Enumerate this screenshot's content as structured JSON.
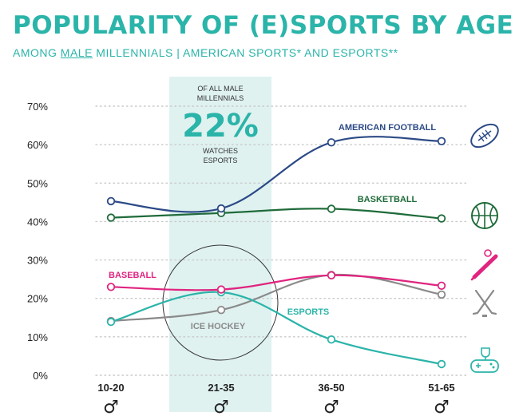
{
  "header": {
    "title": "POPULARITY OF (E)SPORTS BY AGE",
    "subtitle_prefix": "AMONG ",
    "subtitle_underlined": "MALE",
    "subtitle_suffix": " MILLENNIALS | AMERICAN SPORTS* AND ESPORTS**"
  },
  "callout": {
    "line1": "OF ALL MALE",
    "line2": "MILLENNIALS",
    "value": "22%",
    "line3": "WATCHES",
    "line4": "ESPORTS"
  },
  "colors": {
    "title": "#2bb4a9",
    "highlight_band": "#dff2f0",
    "american_football": "#2c4a86",
    "basketball": "#1f6b3a",
    "baseball": "#e0247f",
    "esports": "#2bb4a9",
    "ice_hockey": "#8a8a8a",
    "axis_text": "#222222"
  },
  "chart_data": {
    "type": "line",
    "title": "POPULARITY OF (E)SPORTS BY AGE",
    "subtitle": "AMONG MALE MILLENNIALS | AMERICAN SPORTS* AND ESPORTS**",
    "categories": [
      "10-20",
      "21-35",
      "36-50",
      "51-65"
    ],
    "ylim": [
      0,
      70
    ],
    "yticks": [
      0,
      10,
      20,
      30,
      40,
      50,
      60,
      70
    ],
    "ytick_labels": [
      "0%",
      "10%",
      "20%",
      "30%",
      "40%",
      "50%",
      "60%",
      "70%"
    ],
    "grid": true,
    "highlighted_category": "21-35",
    "series": [
      {
        "name": "AMERICAN FOOTBALL",
        "key": "american_football",
        "values": [
          45.3,
          43.4,
          60.6,
          60.9
        ]
      },
      {
        "name": "BASKETBALL",
        "key": "basketball",
        "values": [
          41.0,
          42.2,
          43.3,
          40.8
        ]
      },
      {
        "name": "BASEBALL",
        "key": "baseball",
        "values": [
          23.0,
          22.3,
          26.0,
          23.3
        ]
      },
      {
        "name": "ESPORTS",
        "key": "esports",
        "values": [
          13.9,
          21.6,
          9.3,
          2.9
        ]
      },
      {
        "name": "ICE HOCKEY",
        "key": "ice_hockey",
        "values": [
          14.1,
          17.0,
          26.1,
          21.0
        ]
      }
    ],
    "icons": [
      "football-icon",
      "basketball-icon",
      "baseball-icon",
      "hockey-sticks-icon",
      "controller-trophy-icon"
    ],
    "category_symbol": "♂"
  }
}
